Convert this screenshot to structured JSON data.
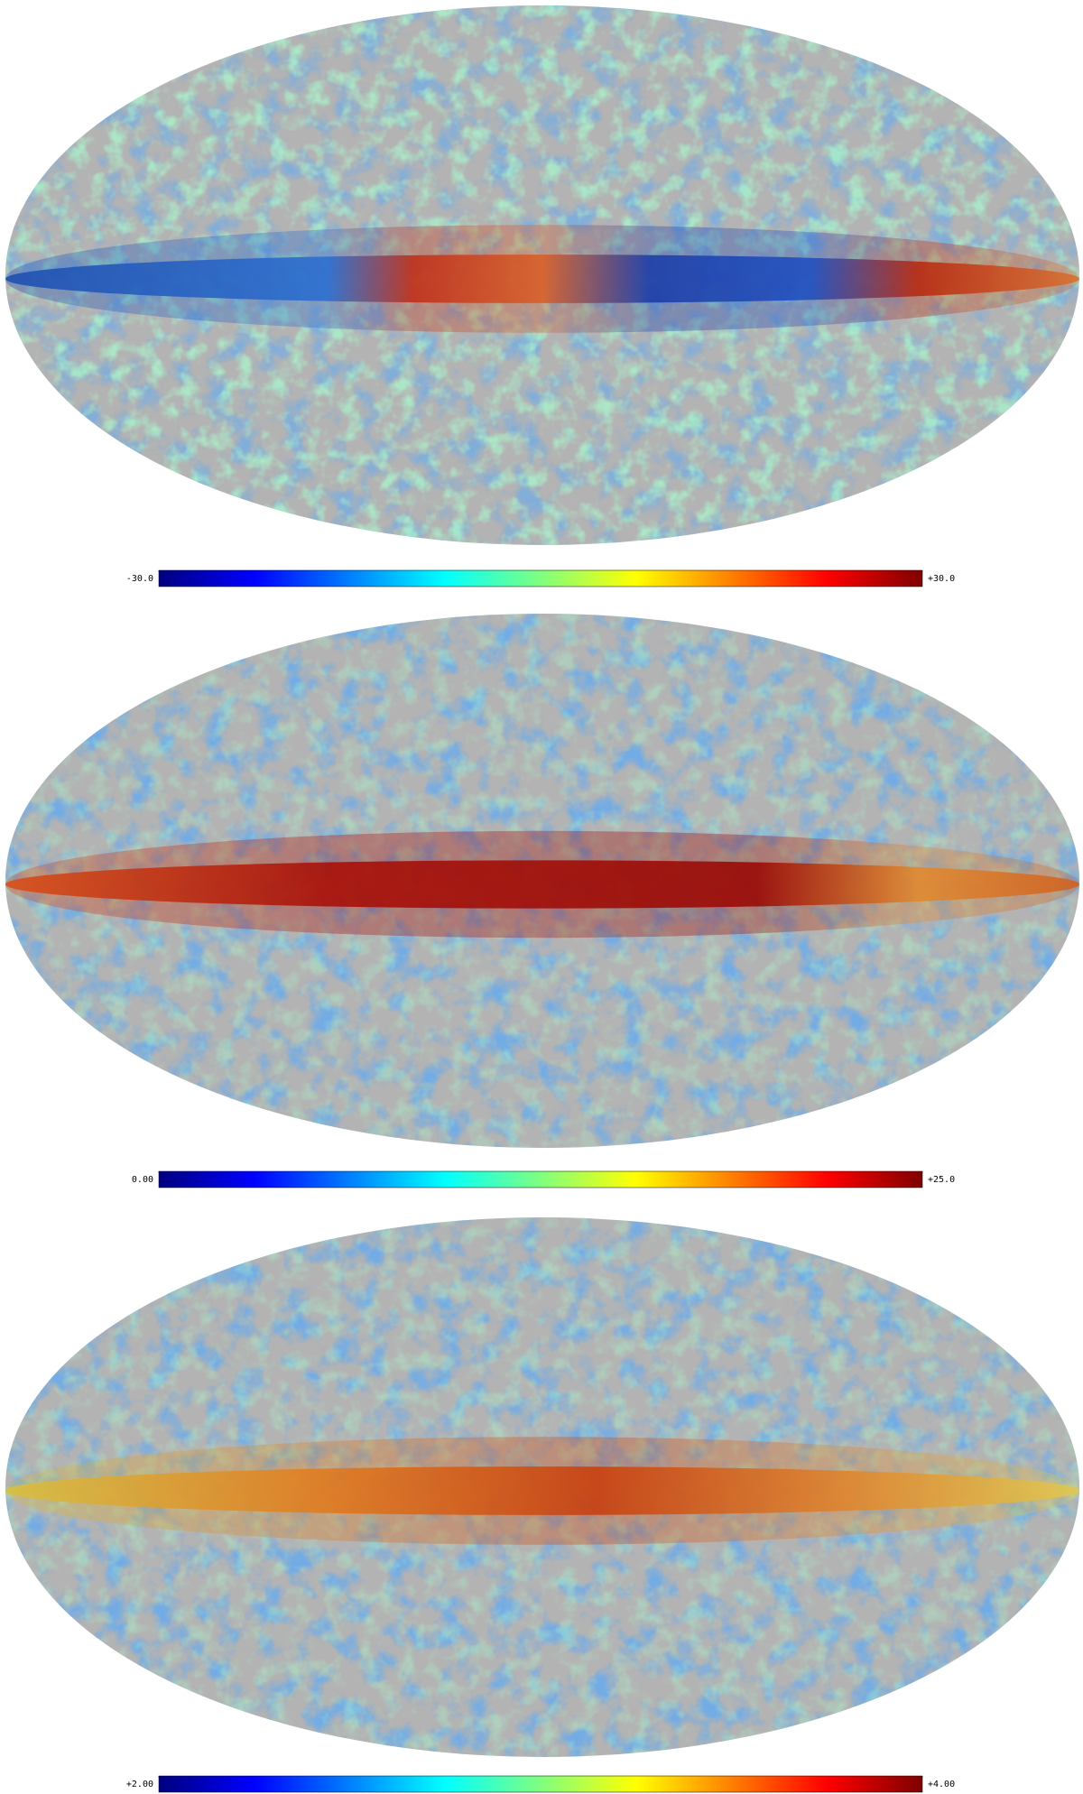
{
  "chart_data": [
    {
      "type": "skymap",
      "colormap": "jet",
      "cticks": [
        {
          "value": -30,
          "label": "-30.0"
        },
        {
          "value": 30,
          "label": "+30.0"
        }
      ]
    },
    {
      "type": "skymap",
      "colormap": "jet",
      "cticks": [
        {
          "value": 0,
          "label": "0.00"
        },
        {
          "value": 25,
          "label": "+25.0"
        }
      ]
    },
    {
      "type": "skymap",
      "colormap": "jet",
      "cticks": [
        {
          "value": 2,
          "label": "+2.00"
        },
        {
          "value": 4,
          "label": "+4.00"
        }
      ]
    }
  ]
}
